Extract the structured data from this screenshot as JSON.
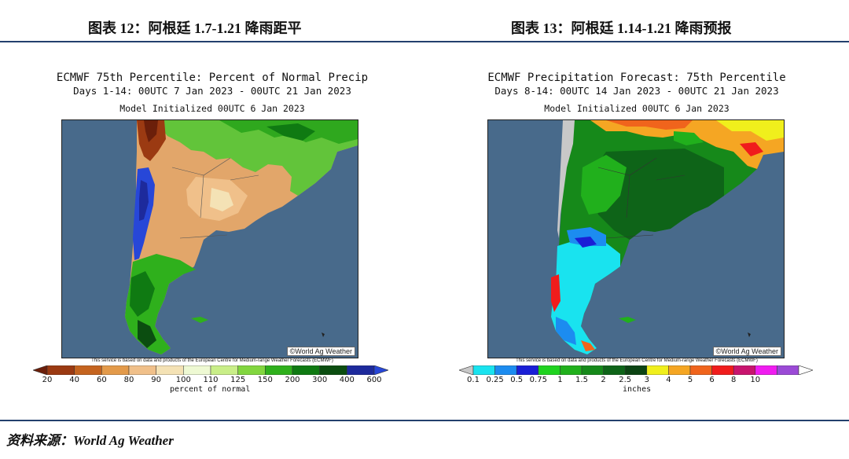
{
  "figures": [
    {
      "fig_title": "图表 12：阿根廷 1.7-1.21 降雨距平",
      "map_title": "ECMWF 75th Percentile: Percent of Normal Precip",
      "map_days": "Days 1-14: 00UTC 7 Jan 2023 - 00UTC 21 Jan 2023",
      "model_init": "Model Initialized 00UTC 6 Jan 2023",
      "credit": "©World Ag Weather",
      "notice": "This service is based on data and products of the European Centre for Medium-range Weather Forecasts (ECMWF)",
      "legend": {
        "unit": "percent of normal",
        "ticks": [
          "20",
          "40",
          "60",
          "80",
          "90",
          "100",
          "110",
          "125",
          "150",
          "200",
          "300",
          "400",
          "600"
        ],
        "colors": [
          "#6b1f0a",
          "#9b3a12",
          "#c5641f",
          "#e39a4a",
          "#f0c08a",
          "#f4e2b5",
          "#eef9d3",
          "#c9ee88",
          "#82d63f",
          "#2fb01c",
          "#0f7a12",
          "#0b4d10",
          "#1d2a9c",
          "#2747d8"
        ]
      }
    },
    {
      "fig_title": "图表 13：阿根廷 1.14-1.21 降雨预报",
      "map_title": "ECMWF Precipitation Forecast: 75th Percentile",
      "map_days": "Days 8-14: 00UTC 14 Jan 2023 - 00UTC 21 Jan 2023",
      "model_init": "Model Initialized 00UTC 6 Jan 2023",
      "credit": "©World Ag Weather",
      "notice": "This service is based on data and products of the European Centre for Medium-range Weather Forecasts (ECMWF)",
      "legend": {
        "unit": "inches",
        "ticks": [
          "0.1",
          "0.25",
          "0.5",
          "0.75",
          "1",
          "1.5",
          "2",
          "2.5",
          "3",
          "4",
          "5",
          "6",
          "8",
          "10"
        ],
        "colors": [
          "#c8c8c8",
          "#19e3ef",
          "#1c8cf0",
          "#1a1fd6",
          "#1fd31f",
          "#21b01c",
          "#16891a",
          "#0e6418",
          "#0c4413",
          "#f0ef1c",
          "#f5a623",
          "#f0641c",
          "#f01c1c",
          "#c8146e",
          "#f01cf0",
          "#9b4ad6",
          "#ffffff"
        ]
      },
      "palette": {
        "ocean": "#486a8b"
      }
    }
  ],
  "source": "资料来源：World Ag Weather"
}
